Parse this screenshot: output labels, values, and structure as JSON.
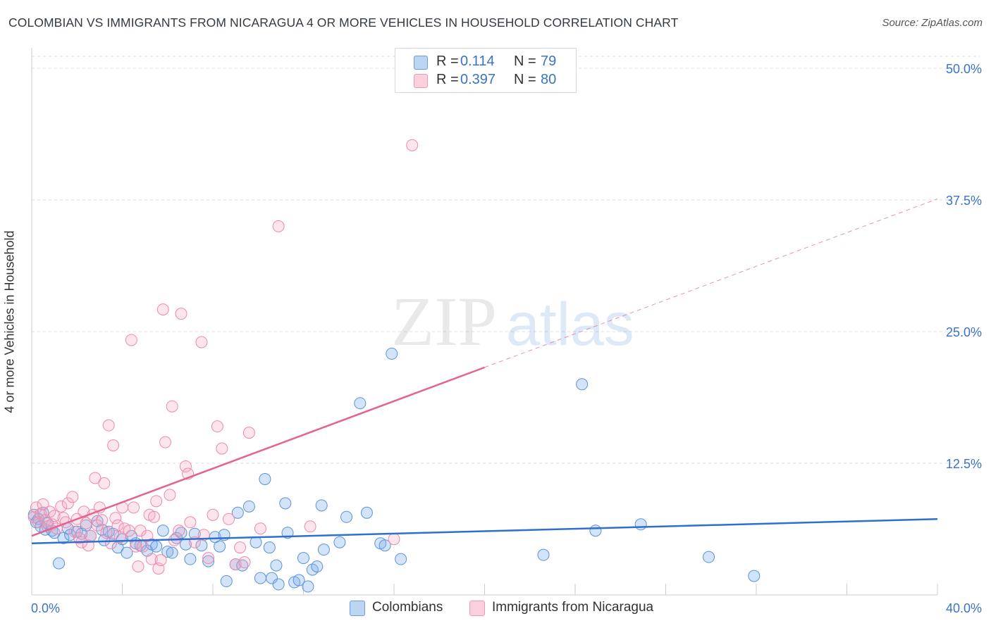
{
  "title": "COLOMBIAN VS IMMIGRANTS FROM NICARAGUA 4 OR MORE VEHICLES IN HOUSEHOLD CORRELATION CHART",
  "source": "Source: ZipAtlas.com",
  "watermark": {
    "zip": "ZIP",
    "atlas": "atlas"
  },
  "legend": {
    "rows": [
      {
        "r_label": "R =",
        "r_value": "0.114",
        "n_label": "N =",
        "n_value": "79",
        "color": "#a9c8f0"
      },
      {
        "r_label": "R =",
        "r_value": "0.397",
        "n_label": "N =",
        "n_value": "80",
        "color": "#f7bfcf"
      }
    ]
  },
  "bottom_legend": [
    {
      "label": "Colombians",
      "color": "#a9c8f0"
    },
    {
      "label": "Immigrants from Nicaragua",
      "color": "#f7bfcf"
    }
  ],
  "colors": {
    "blue_fill": "rgba(130,175,235,0.35)",
    "blue_stroke": "#5b93d8",
    "blue_line": "#2f6fce",
    "pink_fill": "rgba(245,170,195,0.30)",
    "pink_stroke": "#ec8aab",
    "pink_line": "#e2648f",
    "grid": "#dcdcdc",
    "tick_text": "#3a73c8"
  },
  "chart_data": {
    "type": "scatter",
    "title": "COLOMBIAN VS IMMIGRANTS FROM NICARAGUA 4 OR MORE VEHICLES IN HOUSEHOLD CORRELATION CHART",
    "xlabel": "",
    "ylabel": "4 or more Vehicles in Household",
    "xlim": [
      0,
      40
    ],
    "ylim": [
      0,
      52
    ],
    "x_tick_labels": [
      "0.0%",
      "40.0%"
    ],
    "y_ticks": [
      12.5,
      25.0,
      37.5,
      50.0
    ],
    "y_tick_labels": [
      "12.5%",
      "25.0%",
      "37.5%",
      "50.0%"
    ],
    "grid": true,
    "legend_position": "top-center",
    "series": [
      {
        "name": "Colombians",
        "R": 0.114,
        "N": 79,
        "trend": {
          "x": [
            0,
            40
          ],
          "y": [
            4.9,
            7.2
          ],
          "style": "solid"
        },
        "points": [
          [
            0.1,
            7.6
          ],
          [
            0.2,
            6.9
          ],
          [
            0.3,
            7.2
          ],
          [
            0.4,
            6.5
          ],
          [
            0.5,
            7.8
          ],
          [
            0.6,
            6.2
          ],
          [
            0.7,
            6.8
          ],
          [
            0.9,
            6.1
          ],
          [
            1.0,
            5.9
          ],
          [
            1.2,
            3.0
          ],
          [
            1.4,
            5.4
          ],
          [
            1.6,
            6.3
          ],
          [
            1.7,
            5.7
          ],
          [
            2.0,
            6.0
          ],
          [
            2.2,
            5.8
          ],
          [
            2.4,
            6.6
          ],
          [
            2.6,
            5.6
          ],
          [
            2.9,
            7.0
          ],
          [
            3.1,
            6.2
          ],
          [
            3.2,
            5.2
          ],
          [
            3.4,
            6.0
          ],
          [
            3.6,
            5.8
          ],
          [
            3.8,
            4.5
          ],
          [
            4.0,
            5.3
          ],
          [
            4.2,
            4.0
          ],
          [
            4.4,
            5.6
          ],
          [
            4.6,
            4.9
          ],
          [
            4.8,
            4.7
          ],
          [
            5.1,
            4.2
          ],
          [
            5.3,
            4.8
          ],
          [
            5.5,
            4.6
          ],
          [
            5.8,
            6.1
          ],
          [
            6.0,
            4.1
          ],
          [
            6.2,
            4.0
          ],
          [
            6.4,
            5.4
          ],
          [
            6.6,
            5.9
          ],
          [
            6.8,
            4.8
          ],
          [
            7.0,
            3.4
          ],
          [
            7.2,
            5.8
          ],
          [
            7.5,
            4.7
          ],
          [
            7.8,
            3.2
          ],
          [
            8.1,
            5.5
          ],
          [
            8.3,
            4.6
          ],
          [
            8.5,
            5.7
          ],
          [
            8.6,
            1.3
          ],
          [
            9.0,
            2.9
          ],
          [
            9.1,
            7.8
          ],
          [
            9.3,
            2.8
          ],
          [
            9.6,
            8.4
          ],
          [
            9.9,
            5.0
          ],
          [
            10.1,
            1.6
          ],
          [
            10.3,
            11.0
          ],
          [
            10.5,
            4.5
          ],
          [
            10.6,
            1.6
          ],
          [
            10.8,
            2.8
          ],
          [
            10.9,
            1.0
          ],
          [
            11.2,
            8.7
          ],
          [
            11.3,
            5.9
          ],
          [
            11.6,
            1.2
          ],
          [
            11.8,
            1.4
          ],
          [
            12.0,
            3.5
          ],
          [
            12.2,
            0.8
          ],
          [
            12.4,
            2.4
          ],
          [
            12.6,
            2.7
          ],
          [
            12.8,
            8.5
          ],
          [
            12.9,
            4.3
          ],
          [
            13.6,
            5.0
          ],
          [
            13.9,
            7.4
          ],
          [
            14.5,
            18.2
          ],
          [
            14.8,
            7.8
          ],
          [
            15.4,
            4.9
          ],
          [
            15.6,
            4.7
          ],
          [
            15.9,
            22.9
          ],
          [
            16.3,
            3.4
          ],
          [
            22.6,
            3.8
          ],
          [
            24.9,
            6.1
          ],
          [
            24.3,
            20.0
          ],
          [
            26.9,
            6.7
          ],
          [
            29.9,
            3.6
          ],
          [
            31.9,
            1.8
          ]
        ]
      },
      {
        "name": "Immigrants from Nicaragua",
        "R": 0.397,
        "N": 80,
        "trend": {
          "x": [
            0,
            20
          ],
          "y": [
            5.6,
            21.6
          ],
          "style": "solid",
          "extension": {
            "x": [
              20,
              40
            ],
            "y": [
              21.6,
              37.6
            ],
            "style": "dashed"
          }
        },
        "points": [
          [
            0.1,
            7.4
          ],
          [
            0.2,
            8.3
          ],
          [
            0.3,
            6.9
          ],
          [
            0.4,
            7.7
          ],
          [
            0.5,
            8.6
          ],
          [
            0.6,
            7.1
          ],
          [
            0.7,
            6.5
          ],
          [
            0.8,
            7.9
          ],
          [
            0.9,
            6.7
          ],
          [
            1.0,
            7.5
          ],
          [
            1.1,
            6.3
          ],
          [
            1.3,
            8.4
          ],
          [
            1.4,
            7.3
          ],
          [
            1.5,
            6.9
          ],
          [
            1.6,
            8.7
          ],
          [
            1.8,
            9.3
          ],
          [
            1.9,
            6.0
          ],
          [
            2.0,
            7.2
          ],
          [
            2.1,
            5.4
          ],
          [
            2.2,
            5.0
          ],
          [
            2.3,
            7.9
          ],
          [
            2.4,
            6.8
          ],
          [
            2.5,
            4.7
          ],
          [
            2.6,
            5.6
          ],
          [
            2.7,
            7.6
          ],
          [
            2.8,
            11.1
          ],
          [
            2.9,
            6.6
          ],
          [
            3.0,
            8.3
          ],
          [
            3.1,
            7.1
          ],
          [
            3.2,
            10.6
          ],
          [
            3.3,
            5.9
          ],
          [
            3.4,
            16.1
          ],
          [
            3.5,
            4.9
          ],
          [
            3.6,
            14.2
          ],
          [
            3.7,
            7.3
          ],
          [
            3.8,
            6.6
          ],
          [
            3.9,
            5.5
          ],
          [
            4.0,
            8.3
          ],
          [
            4.1,
            6.3
          ],
          [
            4.3,
            6.1
          ],
          [
            4.4,
            24.2
          ],
          [
            4.5,
            8.3
          ],
          [
            4.6,
            4.6
          ],
          [
            4.7,
            2.7
          ],
          [
            4.8,
            6.1
          ],
          [
            4.9,
            4.6
          ],
          [
            5.1,
            5.6
          ],
          [
            5.2,
            7.6
          ],
          [
            5.3,
            3.4
          ],
          [
            5.4,
            7.4
          ],
          [
            5.5,
            8.9
          ],
          [
            5.6,
            2.5
          ],
          [
            5.7,
            3.3
          ],
          [
            5.8,
            27.1
          ],
          [
            5.9,
            14.5
          ],
          [
            6.1,
            9.5
          ],
          [
            6.2,
            17.9
          ],
          [
            6.3,
            5.2
          ],
          [
            6.5,
            6.1
          ],
          [
            6.6,
            26.7
          ],
          [
            6.8,
            12.2
          ],
          [
            6.9,
            11.5
          ],
          [
            7.0,
            6.9
          ],
          [
            7.2,
            5.0
          ],
          [
            7.5,
            24.0
          ],
          [
            7.6,
            5.7
          ],
          [
            7.8,
            3.5
          ],
          [
            8.2,
            16.0
          ],
          [
            8.4,
            13.9
          ],
          [
            8.7,
            7.2
          ],
          [
            9.0,
            2.9
          ],
          [
            9.2,
            4.5
          ],
          [
            9.4,
            3.1
          ],
          [
            9.6,
            15.4
          ],
          [
            10.1,
            6.3
          ],
          [
            10.9,
            35.0
          ],
          [
            12.3,
            6.5
          ],
          [
            16.0,
            5.3
          ],
          [
            16.8,
            42.7
          ],
          [
            8.0,
            7.6
          ]
        ]
      }
    ]
  }
}
